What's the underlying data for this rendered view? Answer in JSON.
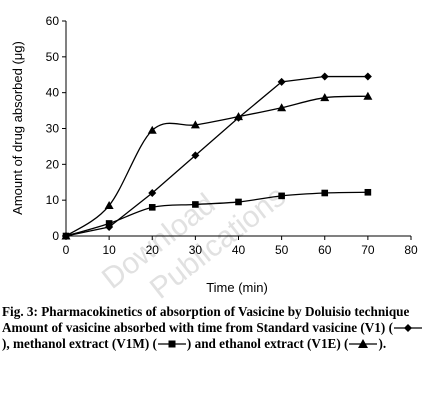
{
  "chart_data": {
    "type": "line",
    "xlabel": "Time (min)",
    "ylabel": "Amount of drug absorbed (μg)",
    "xlim": [
      0,
      80
    ],
    "ylim": [
      0,
      60
    ],
    "xticks": [
      0,
      10,
      20,
      30,
      40,
      50,
      60,
      70,
      80
    ],
    "yticks": [
      0,
      10,
      20,
      30,
      40,
      50,
      60
    ],
    "grid": false,
    "x": [
      0,
      10,
      20,
      30,
      40,
      50,
      60,
      70
    ],
    "series": [
      {
        "marker": "diamond",
        "smooth": false,
        "values": [
          0,
          2.5,
          12,
          22.5,
          33,
          43,
          44.5,
          44.5
        ]
      },
      {
        "marker": "square",
        "smooth": true,
        "values": [
          0,
          3.5,
          8,
          8.8,
          9.5,
          11.2,
          12,
          12.2
        ]
      },
      {
        "marker": "triangle",
        "smooth": true,
        "values": [
          0,
          8.5,
          29.5,
          31,
          33.3,
          35.8,
          38.6,
          39
        ]
      }
    ]
  },
  "caption": {
    "title": "Fig. 3: Pharmacokinetics of absorption of Vasicine by Doluisio technique",
    "body_before_v1": "Amount of vasicine absorbed with time from Standard vasicine (V1) (",
    "body_before_v1m": "), methanol extract (V1M) (",
    "body_before_v1e": ") and ethanol extract (V1E) (",
    "body_end": ")."
  },
  "watermark": {
    "line1": "Download",
    "line2": "Publications"
  }
}
